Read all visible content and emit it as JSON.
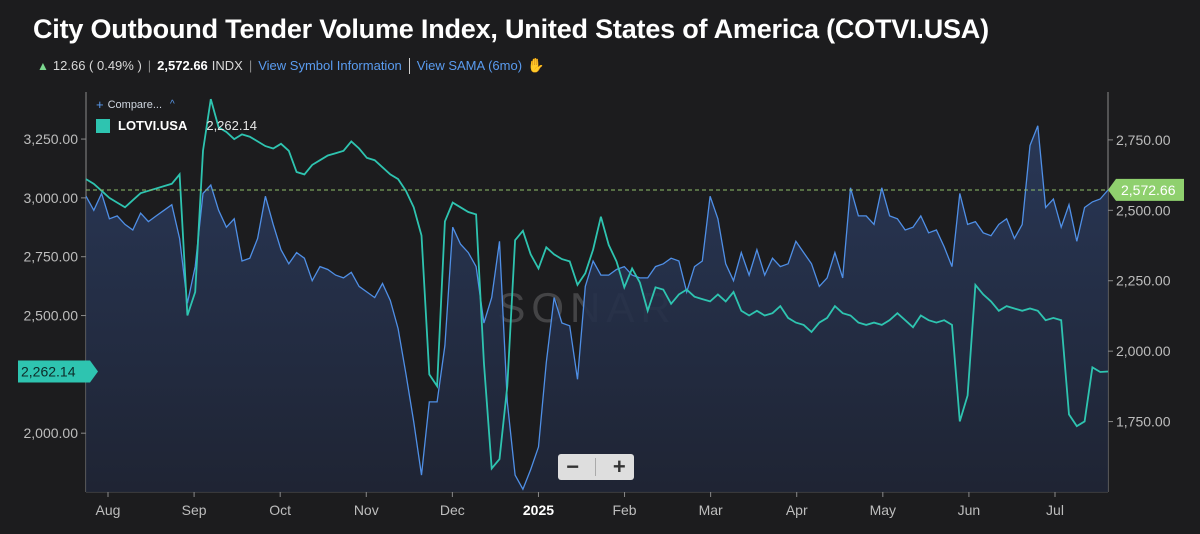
{
  "header": {
    "title": "City Outbound Tender Volume Index, United States of America (COTVI.USA)",
    "change": "12.66 ( 0.49% )",
    "last_value": "2,572.66",
    "unit": "INDX",
    "link_symbol": "View Symbol Information",
    "link_sama": "View SAMA (6mo)"
  },
  "legend": {
    "compare_label": "Compare...",
    "series_name": "LOTVI.USA",
    "series_value": "2,262.14"
  },
  "watermark": "SONAR",
  "zoom": {
    "minus": "−",
    "plus": "+"
  },
  "colors": {
    "cotvi": "#4f8fe6",
    "lotvi": "#2ec4b0",
    "last_tag": "#8fd06e",
    "background": "#1c1c1e"
  },
  "chart_data": {
    "type": "line",
    "x_ticks": [
      "Aug",
      "Sep",
      "Oct",
      "Nov",
      "Dec",
      "2025",
      "Feb",
      "Mar",
      "Apr",
      "May",
      "Jun",
      "Jul"
    ],
    "left_axis": {
      "ticks": [
        "3,250.00",
        "3,000.00",
        "2,750.00",
        "2,500.00",
        "2,000.00"
      ],
      "ylim": [
        1750,
        3450
      ]
    },
    "right_axis": {
      "ticks": [
        "2,750.00",
        "2,500.00",
        "2,250.00",
        "2,000.00",
        "1,750.00"
      ],
      "ylim": [
        1500,
        2920
      ]
    },
    "last_tags": {
      "cotvi": "2,572.66",
      "lotvi": "2,262.14"
    },
    "series": [
      {
        "name": "COTVI.USA",
        "axis": "right",
        "values": [
          2550,
          2500,
          2560,
          2470,
          2480,
          2450,
          2430,
          2490,
          2460,
          2480,
          2500,
          2520,
          2400,
          2170,
          2300,
          2560,
          2590,
          2500,
          2440,
          2470,
          2320,
          2330,
          2400,
          2550,
          2450,
          2360,
          2310,
          2350,
          2330,
          2250,
          2300,
          2290,
          2270,
          2260,
          2280,
          2230,
          2210,
          2190,
          2240,
          2180,
          2080,
          1920,
          1750,
          1560,
          1820,
          1820,
          2020,
          2440,
          2380,
          2350,
          2300,
          2100,
          2190,
          2390,
          1820,
          1560,
          1510,
          1580,
          1660,
          1960,
          2190,
          2100,
          2090,
          1900,
          2230,
          2320,
          2270,
          2270,
          2290,
          2300,
          2270,
          2260,
          2260,
          2300,
          2310,
          2330,
          2320,
          2210,
          2300,
          2320,
          2550,
          2470,
          2310,
          2250,
          2350,
          2270,
          2360,
          2270,
          2330,
          2300,
          2310,
          2390,
          2350,
          2310,
          2230,
          2260,
          2350,
          2260,
          2580,
          2480,
          2480,
          2450,
          2580,
          2480,
          2470,
          2430,
          2440,
          2480,
          2420,
          2430,
          2370,
          2300,
          2560,
          2450,
          2460,
          2420,
          2410,
          2450,
          2470,
          2400,
          2450,
          2730,
          2800,
          2510,
          2540,
          2440,
          2520,
          2390,
          2510,
          2530,
          2540,
          2572
        ]
      },
      {
        "name": "LOTVI.USA",
        "axis": "left",
        "values": [
          3080,
          3060,
          3030,
          3000,
          2980,
          2960,
          2990,
          3020,
          3030,
          3040,
          3050,
          3060,
          3100,
          2500,
          2600,
          3200,
          3420,
          3300,
          3280,
          3250,
          3270,
          3260,
          3240,
          3220,
          3210,
          3230,
          3200,
          3110,
          3100,
          3140,
          3160,
          3180,
          3190,
          3200,
          3240,
          3210,
          3170,
          3160,
          3130,
          3100,
          3080,
          3030,
          2960,
          2840,
          2250,
          2200,
          2900,
          2980,
          2960,
          2940,
          2930,
          2300,
          1850,
          1890,
          2200,
          2820,
          2860,
          2760,
          2700,
          2790,
          2760,
          2740,
          2730,
          2630,
          2680,
          2780,
          2920,
          2800,
          2730,
          2620,
          2700,
          2640,
          2520,
          2620,
          2610,
          2550,
          2590,
          2610,
          2580,
          2570,
          2560,
          2590,
          2560,
          2600,
          2520,
          2500,
          2520,
          2500,
          2510,
          2540,
          2490,
          2470,
          2460,
          2430,
          2470,
          2490,
          2540,
          2510,
          2500,
          2470,
          2460,
          2470,
          2460,
          2480,
          2510,
          2480,
          2450,
          2500,
          2480,
          2470,
          2480,
          2460,
          2050,
          2160,
          2630,
          2590,
          2560,
          2520,
          2540,
          2530,
          2520,
          2530,
          2520,
          2480,
          2490,
          2480,
          2080,
          2030,
          2050,
          2280,
          2260,
          2262
        ]
      }
    ]
  }
}
